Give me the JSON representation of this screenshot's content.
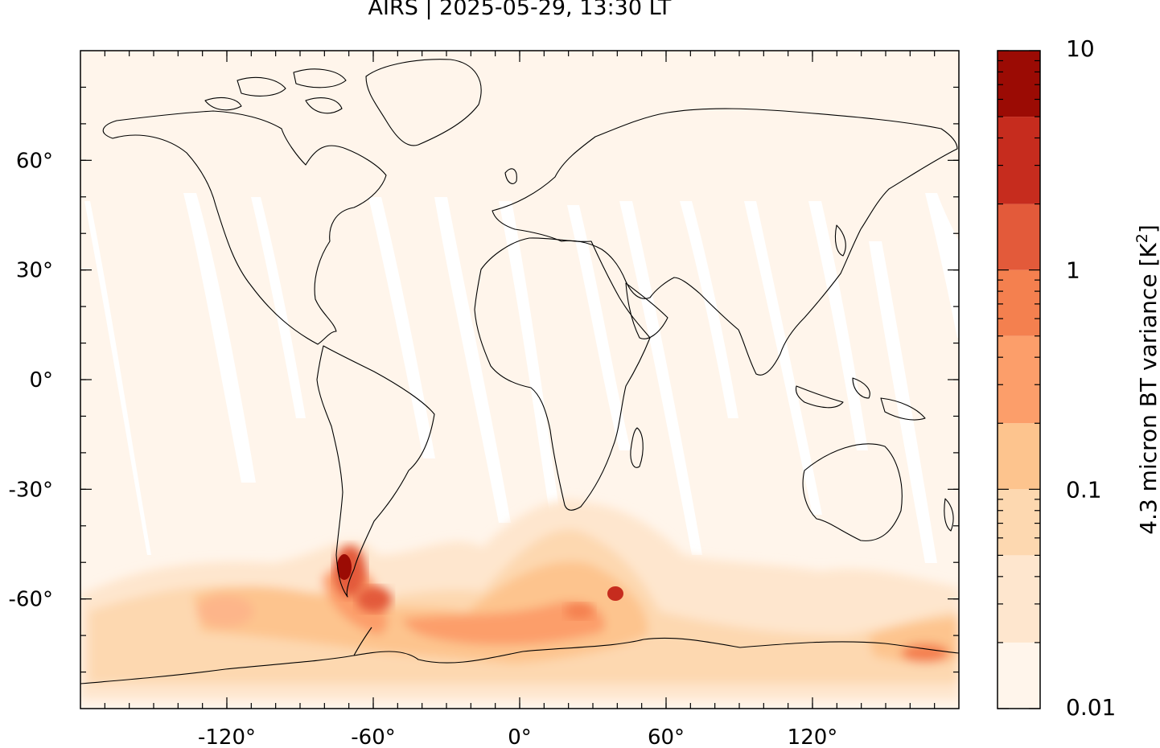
{
  "title": "AIRS | 2025-05-29, 13:30 LT",
  "map": {
    "projection": "equirectangular",
    "lon_range": [
      -180,
      180
    ],
    "lat_range": [
      -90,
      90
    ],
    "x_ticks": [
      {
        "value": -120,
        "label": "-120°"
      },
      {
        "value": -60,
        "label": "-60°"
      },
      {
        "value": 0,
        "label": "0°"
      },
      {
        "value": 60,
        "label": "60°"
      },
      {
        "value": 120,
        "label": "120°"
      }
    ],
    "y_ticks": [
      {
        "value": 60,
        "label": "60°"
      },
      {
        "value": 30,
        "label": "30°"
      },
      {
        "value": 0,
        "label": "0°"
      },
      {
        "value": -30,
        "label": "-30°"
      },
      {
        "value": -60,
        "label": "-60°"
      }
    ],
    "background_color": "#fff5eb",
    "coastline_color": "#000000",
    "swath_gap_color": "#ffffff"
  },
  "colorbar": {
    "label": "4.3 micron BT variance [K",
    "label_sup": "2",
    "label_end": "]",
    "scale": "log",
    "range": [
      0.01,
      10
    ],
    "tick_labels": [
      {
        "value": 10,
        "label": "10"
      },
      {
        "value": 1,
        "label": "1"
      },
      {
        "value": 0.1,
        "label": "0.1"
      },
      {
        "value": 0.01,
        "label": "0.01"
      }
    ],
    "bins": [
      {
        "from": 0.01,
        "to": 0.02,
        "color": "#fff5eb"
      },
      {
        "from": 0.02,
        "to": 0.05,
        "color": "#fee6ce"
      },
      {
        "from": 0.05,
        "to": 0.1,
        "color": "#fdd8b0"
      },
      {
        "from": 0.1,
        "to": 0.2,
        "color": "#fdc48e"
      },
      {
        "from": 0.2,
        "to": 0.5,
        "color": "#fc9e6a"
      },
      {
        "from": 0.5,
        "to": 1,
        "color": "#f4804f"
      },
      {
        "from": 1,
        "to": 2,
        "color": "#e35a3a"
      },
      {
        "from": 2,
        "to": 5,
        "color": "#c62c1e"
      },
      {
        "from": 5,
        "to": 10,
        "color": "#9b0b04"
      }
    ]
  }
}
